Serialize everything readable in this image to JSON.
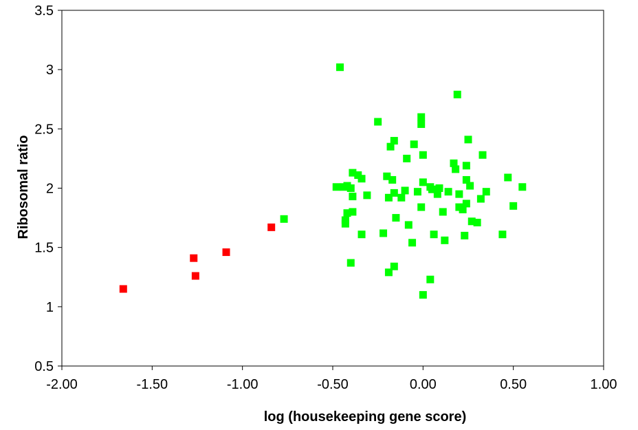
{
  "chart_data": {
    "type": "scatter",
    "title": "",
    "xlabel": "log (housekeeping gene score)",
    "ylabel": "Ribosomal ratio",
    "xlim": [
      -2.0,
      1.0
    ],
    "ylim": [
      0.5,
      3.5
    ],
    "xticks": [
      "-2.00",
      "-1.50",
      "-1.00",
      "-0.50",
      "0.00",
      "0.50",
      "1.00"
    ],
    "yticks": [
      "0.5",
      "1",
      "1.5",
      "2",
      "2.5",
      "3",
      "3.5"
    ],
    "grid": false,
    "legend": "none",
    "series": [
      {
        "color": "#ff0000",
        "marker": "square",
        "points": [
          [
            -1.66,
            1.15
          ],
          [
            -1.27,
            1.41
          ],
          [
            -1.26,
            1.26
          ],
          [
            -1.09,
            1.46
          ],
          [
            -0.84,
            1.67
          ]
        ]
      },
      {
        "color": "#00ff00",
        "marker": "square",
        "points": [
          [
            -0.77,
            1.74
          ],
          [
            -0.46,
            3.02
          ],
          [
            -0.48,
            2.01
          ],
          [
            -0.44,
            2.01
          ],
          [
            -0.42,
            2.02
          ],
          [
            -0.4,
            2.0
          ],
          [
            -0.39,
            2.13
          ],
          [
            -0.36,
            2.11
          ],
          [
            -0.34,
            2.08
          ],
          [
            -0.39,
            1.93
          ],
          [
            -0.42,
            1.79
          ],
          [
            -0.39,
            1.8
          ],
          [
            -0.43,
            1.73
          ],
          [
            -0.43,
            1.7
          ],
          [
            -0.34,
            1.61
          ],
          [
            -0.4,
            1.37
          ],
          [
            -0.31,
            1.94
          ],
          [
            -0.25,
            2.56
          ],
          [
            -0.22,
            1.62
          ],
          [
            -0.2,
            2.1
          ],
          [
            -0.19,
            1.92
          ],
          [
            -0.18,
            2.35
          ],
          [
            -0.16,
            2.4
          ],
          [
            -0.17,
            2.07
          ],
          [
            -0.16,
            1.96
          ],
          [
            -0.15,
            1.75
          ],
          [
            -0.16,
            1.34
          ],
          [
            -0.19,
            1.29
          ],
          [
            -0.12,
            1.92
          ],
          [
            -0.1,
            1.98
          ],
          [
            -0.09,
            2.25
          ],
          [
            -0.08,
            1.69
          ],
          [
            -0.06,
            1.54
          ],
          [
            -0.05,
            2.37
          ],
          [
            -0.03,
            1.97
          ],
          [
            -0.01,
            2.6
          ],
          [
            -0.01,
            2.54
          ],
          [
            0.0,
            2.28
          ],
          [
            0.0,
            2.05
          ],
          [
            -0.01,
            1.84
          ],
          [
            0.0,
            1.1
          ],
          [
            0.04,
            2.01
          ],
          [
            0.05,
            1.99
          ],
          [
            0.06,
            1.61
          ],
          [
            0.04,
            1.23
          ],
          [
            0.08,
            1.95
          ],
          [
            0.09,
            2.0
          ],
          [
            0.11,
            1.8
          ],
          [
            0.12,
            1.56
          ],
          [
            0.14,
            1.97
          ],
          [
            0.17,
            2.21
          ],
          [
            0.18,
            2.16
          ],
          [
            0.19,
            2.79
          ],
          [
            0.2,
            1.95
          ],
          [
            0.2,
            1.84
          ],
          [
            0.22,
            1.82
          ],
          [
            0.24,
            2.19
          ],
          [
            0.24,
            2.07
          ],
          [
            0.25,
            2.41
          ],
          [
            0.26,
            2.02
          ],
          [
            0.24,
            1.87
          ],
          [
            0.23,
            1.6
          ],
          [
            0.27,
            1.72
          ],
          [
            0.3,
            1.71
          ],
          [
            0.32,
            1.91
          ],
          [
            0.33,
            2.28
          ],
          [
            0.35,
            1.97
          ],
          [
            0.44,
            1.61
          ],
          [
            0.47,
            2.09
          ],
          [
            0.5,
            1.85
          ],
          [
            0.55,
            2.01
          ]
        ]
      }
    ]
  }
}
